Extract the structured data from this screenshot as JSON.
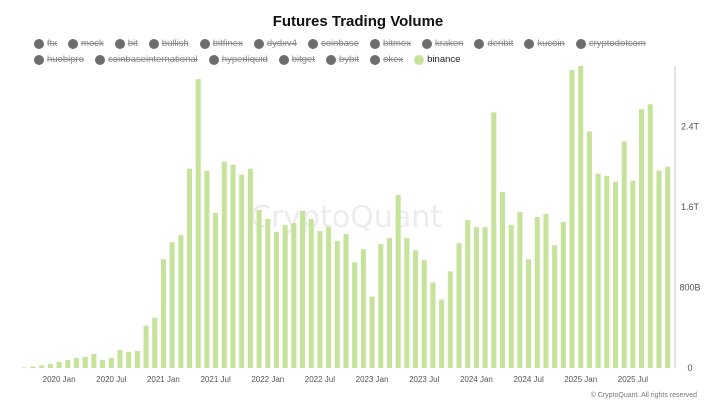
{
  "chart_data": {
    "type": "bar",
    "title": "Futures Trading Volume",
    "xlabel": "",
    "ylabel": "",
    "ylim": [
      0,
      3.0
    ],
    "y_unit": "T",
    "yticks": [
      {
        "value": 0,
        "label": "0"
      },
      {
        "value": 0.8,
        "label": "800B"
      },
      {
        "value": 1.6,
        "label": "1.6T"
      },
      {
        "value": 2.4,
        "label": "2.4T"
      }
    ],
    "xticks": [
      {
        "index": 4,
        "label": "2020 Jan"
      },
      {
        "index": 10,
        "label": "2020 Jul"
      },
      {
        "index": 16,
        "label": "2021 Jan"
      },
      {
        "index": 22,
        "label": "2021 Jul"
      },
      {
        "index": 28,
        "label": "2022 Jan"
      },
      {
        "index": 34,
        "label": "2022 Jul"
      },
      {
        "index": 40,
        "label": "2023 Jan"
      },
      {
        "index": 46,
        "label": "2023 Jul"
      },
      {
        "index": 52,
        "label": "2024 Jan"
      },
      {
        "index": 58,
        "label": "2024 Jul"
      },
      {
        "index": 64,
        "label": "2025 Jan"
      },
      {
        "index": 70,
        "label": "2025 Jul"
      }
    ],
    "grid": false,
    "legend_position": "top",
    "series": [
      {
        "name": "binance",
        "color": "#c5e39a",
        "values": [
          0.005,
          0.015,
          0.025,
          0.04,
          0.06,
          0.08,
          0.1,
          0.11,
          0.14,
          0.08,
          0.1,
          0.18,
          0.16,
          0.17,
          0.42,
          0.5,
          1.08,
          1.25,
          1.32,
          1.98,
          2.87,
          1.96,
          1.54,
          2.05,
          2.02,
          1.92,
          1.98,
          1.57,
          1.48,
          1.35,
          1.42,
          1.44,
          1.56,
          1.48,
          1.36,
          1.4,
          1.26,
          1.33,
          1.05,
          1.18,
          0.71,
          1.23,
          1.29,
          1.72,
          1.29,
          1.17,
          1.07,
          0.85,
          0.68,
          0.96,
          1.24,
          1.47,
          1.4,
          1.4,
          2.54,
          1.75,
          1.42,
          1.55,
          1.08,
          1.5,
          1.53,
          1.22,
          1.45,
          2.96,
          3.0,
          2.35,
          1.93,
          1.91,
          1.85,
          2.25,
          1.86,
          2.57,
          2.62,
          1.96,
          2.0
        ]
      }
    ]
  },
  "legend": [
    {
      "label": "ftx",
      "active": false
    },
    {
      "label": "mock",
      "active": false
    },
    {
      "label": "bit",
      "active": false
    },
    {
      "label": "bullish",
      "active": false
    },
    {
      "label": "bitfinex",
      "active": false
    },
    {
      "label": "dydxv4",
      "active": false
    },
    {
      "label": "coinbase",
      "active": false
    },
    {
      "label": "bitmex",
      "active": false
    },
    {
      "label": "kraken",
      "active": false
    },
    {
      "label": "deribit",
      "active": false
    },
    {
      "label": "kucoin",
      "active": false
    },
    {
      "label": "cryptodotcom",
      "active": false
    },
    {
      "label": "huobipro",
      "active": false
    },
    {
      "label": "coinbaseinternational",
      "active": false
    },
    {
      "label": "hyperliquid",
      "active": false
    },
    {
      "label": "bitget",
      "active": false
    },
    {
      "label": "bybit",
      "active": false
    },
    {
      "label": "okex",
      "active": false
    },
    {
      "label": "binance",
      "active": true
    }
  ],
  "watermark": "CryptoQuant",
  "credit": "© CryptoQuant. All rights reserved",
  "colors": {
    "inactive": "#6d6d6d",
    "active": "#c5e39a",
    "axis": "#c8c8c8"
  }
}
